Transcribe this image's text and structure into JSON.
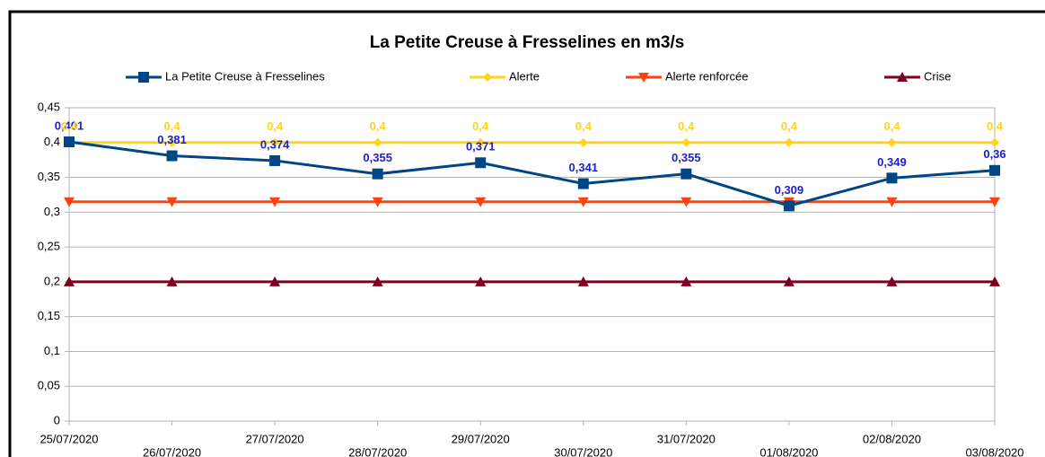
{
  "chart_data": {
    "type": "line",
    "title": "La Petite Creuse à Fresselines en m3/s",
    "categories": [
      "25/07/2020",
      "26/07/2020",
      "27/07/2020",
      "28/07/2020",
      "29/07/2020",
      "30/07/2020",
      "31/07/2020",
      "01/08/2020",
      "02/08/2020",
      "03/08/2020"
    ],
    "series": [
      {
        "name": "La Petite Creuse à Fresselines",
        "color": "#004586",
        "marker": "square",
        "label_color": "#2020c8",
        "values": [
          0.401,
          0.381,
          0.374,
          0.355,
          0.371,
          0.341,
          0.355,
          0.309,
          0.349,
          0.36
        ],
        "value_labels": [
          "0,401",
          "0,381",
          "0,374",
          "0,355",
          "0,371",
          "0,341",
          "0,355",
          "0,309",
          "0,349",
          "0,36"
        ]
      },
      {
        "name": "Alerte",
        "color": "#ffd320",
        "marker": "diamond",
        "label_color": "#ffd320",
        "values": [
          0.4,
          0.4,
          0.4,
          0.4,
          0.4,
          0.4,
          0.4,
          0.4,
          0.4,
          0.4
        ],
        "value_labels": [
          "0,4",
          "0,4",
          "0,4",
          "0,4",
          "0,4",
          "0,4",
          "0,4",
          "0,4",
          "0,4",
          "0,4"
        ]
      },
      {
        "name": "Alerte renforcée",
        "color": "#ff420e",
        "marker": "triangle-down",
        "values": [
          0.315,
          0.315,
          0.315,
          0.315,
          0.315,
          0.315,
          0.315,
          0.315,
          0.315,
          0.315
        ]
      },
      {
        "name": "Crise",
        "color": "#7e0021",
        "marker": "triangle-up",
        "values": [
          0.2,
          0.2,
          0.2,
          0.2,
          0.2,
          0.2,
          0.2,
          0.2,
          0.2,
          0.2
        ]
      }
    ],
    "ylim": [
      0,
      0.45
    ],
    "yticks": [
      0,
      {
        "value": 0.05,
        "label": "0,05"
      },
      {
        "value": 0.1,
        "label": "0,1"
      },
      {
        "value": 0.15,
        "label": "0,15"
      },
      {
        "value": 0.2,
        "label": "0,2"
      },
      {
        "value": 0.25,
        "label": "0,25"
      },
      {
        "value": 0.3,
        "label": "0,3"
      },
      {
        "value": 0.35,
        "label": "0,35"
      },
      {
        "value": 0.4,
        "label": "0,4"
      },
      {
        "value": 0.45,
        "label": "0,45"
      }
    ],
    "grid": true
  }
}
